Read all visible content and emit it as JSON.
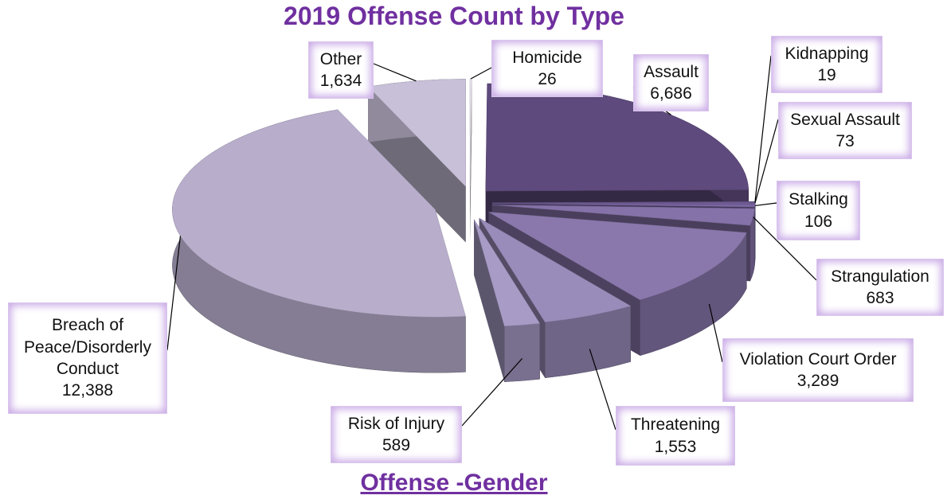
{
  "chart_data": {
    "type": "pie",
    "title": "2019 Offense Count by Type",
    "subtitle": "Offense -Gender",
    "categories": [
      "Homicide",
      "Assault",
      "Kidnapping",
      "Sexual Assault",
      "Stalking",
      "Strangulation",
      "Violation Court Order",
      "Threatening",
      "Risk of Injury",
      "Breach of Peace/Disorderly Conduct",
      "Other"
    ],
    "values": [
      26,
      6686,
      19,
      73,
      106,
      683,
      3289,
      1553,
      589,
      12388,
      1634
    ],
    "value_labels": [
      "26",
      "6,686",
      "19",
      "73",
      "106",
      "683",
      "3,289",
      "1,553",
      "589",
      "12,388",
      "1,634"
    ],
    "colors": [
      "#ece8f2",
      "#5e4a7c",
      "#6e5a92",
      "#74609a",
      "#7a66a2",
      "#8572a8",
      "#8a78ac",
      "#9a8cba",
      "#a89cc6",
      "#b8aecc",
      "#c8c0d8"
    ]
  }
}
